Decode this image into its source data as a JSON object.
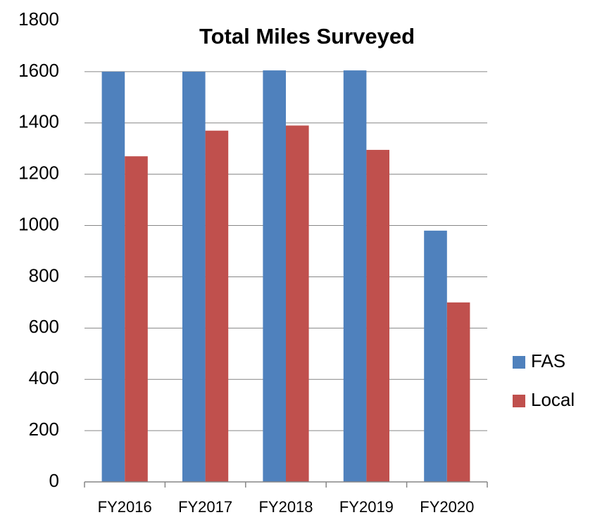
{
  "chart_data": {
    "type": "bar",
    "title": "Total Miles Surveyed",
    "categories": [
      "FY2016",
      "FY2017",
      "FY2018",
      "FY2019",
      "FY2020"
    ],
    "series": [
      {
        "name": "FAS",
        "color": "#4f81bd",
        "values": [
          1600,
          1600,
          1605,
          1605,
          980
        ]
      },
      {
        "name": "Local",
        "color": "#c0504d",
        "values": [
          1270,
          1370,
          1390,
          1295,
          700
        ]
      }
    ],
    "ylim": [
      0,
      1800
    ],
    "yticks": [
      0,
      200,
      400,
      600,
      800,
      1000,
      1200,
      1400,
      1600,
      1800
    ],
    "grid": true,
    "legend": "right"
  }
}
